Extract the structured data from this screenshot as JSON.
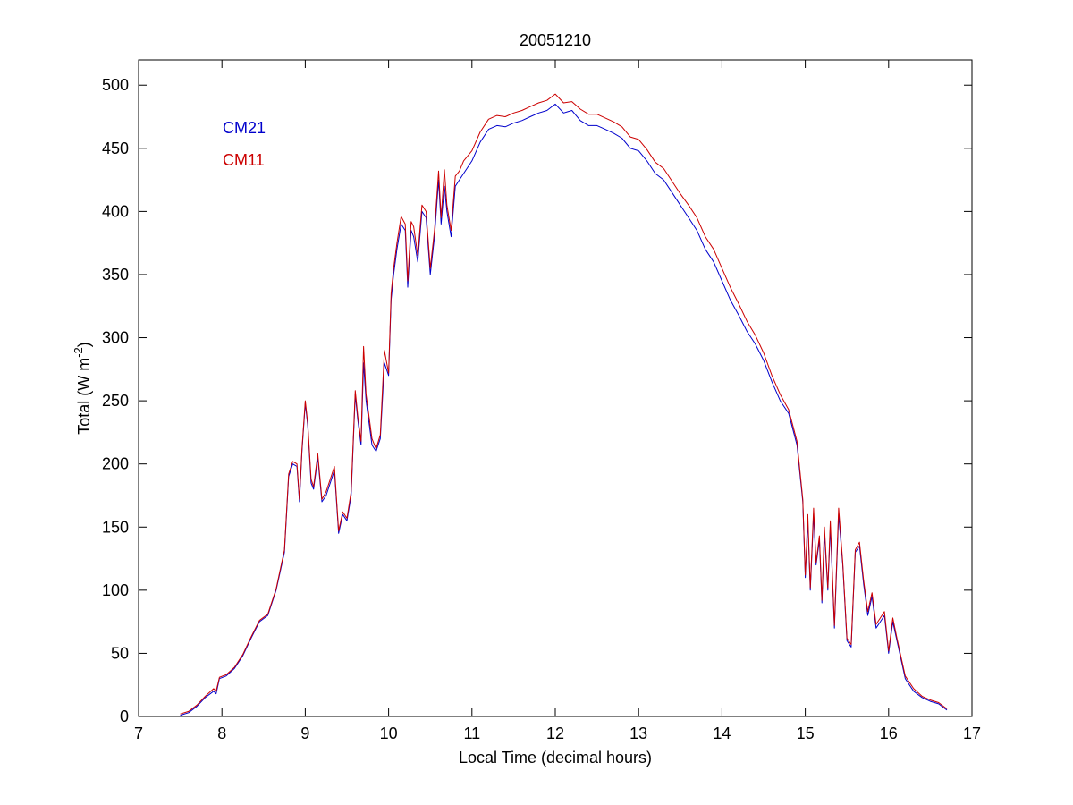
{
  "chart_data": {
    "type": "line",
    "title": "20051210",
    "xlabel": "Local Time (decimal hours)",
    "ylabel": {
      "main": "Total (W m",
      "superscript": "-2",
      "close": ")"
    },
    "xlim": [
      7,
      17
    ],
    "ylim": [
      0,
      520
    ],
    "xticks": [
      7,
      8,
      9,
      10,
      11,
      12,
      13,
      14,
      15,
      16,
      17
    ],
    "yticks": [
      0,
      50,
      100,
      150,
      200,
      250,
      300,
      350,
      400,
      450,
      500
    ],
    "grid": false,
    "legend": {
      "placement": "top-left"
    },
    "series": [
      {
        "name": "CM21",
        "color": "#0000cc",
        "x": [
          7.5,
          7.6,
          7.7,
          7.8,
          7.9,
          7.93,
          7.97,
          8.05,
          8.15,
          8.25,
          8.35,
          8.45,
          8.55,
          8.65,
          8.75,
          8.8,
          8.85,
          8.9,
          8.93,
          8.96,
          9.0,
          9.03,
          9.07,
          9.1,
          9.15,
          9.2,
          9.25,
          9.3,
          9.35,
          9.4,
          9.45,
          9.5,
          9.55,
          9.6,
          9.63,
          9.67,
          9.7,
          9.73,
          9.77,
          9.8,
          9.85,
          9.9,
          9.95,
          10.0,
          10.03,
          10.06,
          10.1,
          10.15,
          10.2,
          10.23,
          10.27,
          10.3,
          10.35,
          10.4,
          10.45,
          10.5,
          10.55,
          10.6,
          10.63,
          10.67,
          10.7,
          10.75,
          10.8,
          10.85,
          10.9,
          11.0,
          11.1,
          11.2,
          11.3,
          11.4,
          11.5,
          11.6,
          11.7,
          11.8,
          11.9,
          12.0,
          12.1,
          12.2,
          12.3,
          12.4,
          12.5,
          12.6,
          12.7,
          12.8,
          12.9,
          13.0,
          13.1,
          13.2,
          13.3,
          13.4,
          13.5,
          13.6,
          13.7,
          13.8,
          13.9,
          14.0,
          14.1,
          14.2,
          14.3,
          14.4,
          14.5,
          14.6,
          14.7,
          14.8,
          14.9,
          14.97,
          15.0,
          15.03,
          15.06,
          15.1,
          15.13,
          15.17,
          15.2,
          15.23,
          15.27,
          15.3,
          15.35,
          15.4,
          15.45,
          15.5,
          15.55,
          15.6,
          15.65,
          15.7,
          15.75,
          15.8,
          15.85,
          15.9,
          15.95,
          16.0,
          16.05,
          16.1,
          16.2,
          16.3,
          16.4,
          16.5,
          16.6,
          16.7
        ],
        "y": [
          1,
          3,
          8,
          15,
          20,
          18,
          30,
          32,
          38,
          48,
          62,
          75,
          80,
          100,
          130,
          190,
          200,
          198,
          170,
          210,
          248,
          230,
          185,
          180,
          205,
          170,
          175,
          185,
          195,
          145,
          160,
          155,
          175,
          255,
          235,
          215,
          280,
          250,
          230,
          215,
          210,
          220,
          280,
          270,
          330,
          350,
          370,
          390,
          385,
          340,
          385,
          380,
          360,
          400,
          395,
          350,
          380,
          425,
          390,
          420,
          400,
          380,
          420,
          425,
          430,
          440,
          455,
          465,
          468,
          467,
          470,
          472,
          475,
          478,
          480,
          485,
          478,
          480,
          472,
          468,
          468,
          465,
          462,
          458,
          450,
          448,
          440,
          430,
          425,
          415,
          405,
          395,
          385,
          370,
          360,
          345,
          330,
          318,
          305,
          295,
          282,
          265,
          250,
          240,
          215,
          170,
          110,
          155,
          100,
          160,
          120,
          140,
          90,
          145,
          100,
          150,
          70,
          160,
          120,
          60,
          55,
          130,
          135,
          105,
          80,
          95,
          70,
          75,
          80,
          50,
          75,
          60,
          30,
          20,
          15,
          12,
          10,
          5
        ]
      },
      {
        "name": "CM11",
        "color": "#cc0000",
        "x": [
          7.5,
          7.6,
          7.7,
          7.8,
          7.9,
          7.93,
          7.97,
          8.05,
          8.15,
          8.25,
          8.35,
          8.45,
          8.55,
          8.65,
          8.75,
          8.8,
          8.85,
          8.9,
          8.93,
          8.96,
          9.0,
          9.03,
          9.07,
          9.1,
          9.15,
          9.2,
          9.25,
          9.3,
          9.35,
          9.4,
          9.45,
          9.5,
          9.55,
          9.6,
          9.63,
          9.67,
          9.7,
          9.73,
          9.77,
          9.8,
          9.85,
          9.9,
          9.95,
          10.0,
          10.03,
          10.06,
          10.1,
          10.15,
          10.2,
          10.23,
          10.27,
          10.3,
          10.35,
          10.4,
          10.45,
          10.5,
          10.55,
          10.6,
          10.63,
          10.67,
          10.7,
          10.75,
          10.8,
          10.85,
          10.9,
          11.0,
          11.1,
          11.2,
          11.3,
          11.4,
          11.5,
          11.6,
          11.7,
          11.8,
          11.9,
          12.0,
          12.1,
          12.2,
          12.3,
          12.4,
          12.5,
          12.6,
          12.7,
          12.8,
          12.9,
          13.0,
          13.1,
          13.2,
          13.3,
          13.4,
          13.5,
          13.6,
          13.7,
          13.8,
          13.9,
          14.0,
          14.1,
          14.2,
          14.3,
          14.4,
          14.5,
          14.6,
          14.7,
          14.8,
          14.9,
          14.97,
          15.0,
          15.03,
          15.06,
          15.1,
          15.13,
          15.17,
          15.2,
          15.23,
          15.27,
          15.3,
          15.35,
          15.4,
          15.45,
          15.5,
          15.55,
          15.6,
          15.65,
          15.7,
          15.75,
          15.8,
          15.85,
          15.9,
          15.95,
          16.0,
          16.05,
          16.1,
          16.2,
          16.3,
          16.4,
          16.5,
          16.6,
          16.7
        ],
        "y": [
          2,
          4,
          9,
          16,
          22,
          20,
          31,
          33,
          39,
          49,
          63,
          76,
          81,
          101,
          132,
          192,
          202,
          200,
          172,
          212,
          250,
          232,
          188,
          182,
          208,
          172,
          178,
          188,
          198,
          147,
          162,
          157,
          178,
          258,
          238,
          218,
          293,
          255,
          235,
          220,
          212,
          223,
          290,
          272,
          335,
          355,
          375,
          396,
          390,
          345,
          392,
          388,
          365,
          405,
          400,
          355,
          385,
          432,
          395,
          433,
          405,
          385,
          428,
          432,
          440,
          448,
          463,
          473,
          476,
          475,
          478,
          480,
          483,
          486,
          488,
          493,
          486,
          487,
          481,
          477,
          477,
          474,
          471,
          467,
          459,
          457,
          449,
          439,
          434,
          424,
          414,
          405,
          395,
          380,
          370,
          355,
          340,
          327,
          313,
          302,
          288,
          270,
          255,
          243,
          218,
          172,
          112,
          160,
          102,
          165,
          122,
          143,
          92,
          150,
          102,
          155,
          72,
          165,
          122,
          62,
          57,
          132,
          138,
          108,
          83,
          98,
          73,
          78,
          83,
          52,
          78,
          62,
          32,
          22,
          16,
          13,
          11,
          6
        ]
      }
    ]
  }
}
